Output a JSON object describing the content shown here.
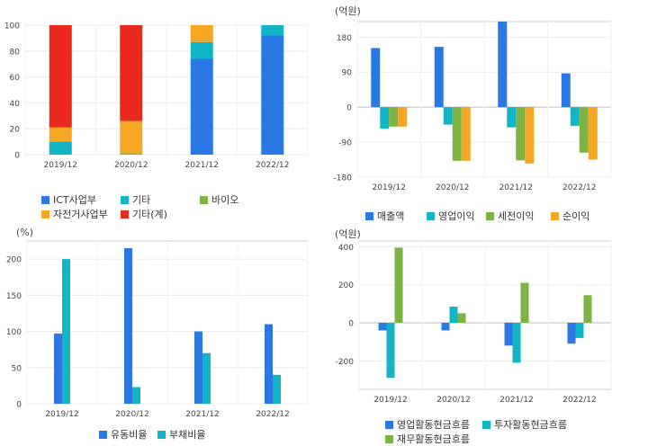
{
  "chart_data": [
    {
      "id": "c1",
      "type": "bar",
      "stacked": true,
      "categories": [
        "2019/12",
        "2020/12",
        "2021/12",
        "2022/12"
      ],
      "series": [
        {
          "name": "ICT사업부",
          "color": "#2b78e4",
          "values": [
            0,
            0,
            74,
            92
          ]
        },
        {
          "name": "기타",
          "color": "#12b5c5",
          "values": [
            10,
            0,
            13,
            8
          ]
        },
        {
          "name": "바이오",
          "color": "#7cb342",
          "values": [
            0,
            1,
            0,
            0
          ]
        },
        {
          "name": "자전거사업부",
          "color": "#f5a623",
          "values": [
            11,
            25,
            13,
            0
          ]
        },
        {
          "name": "기타(계)",
          "color": "#e8291c",
          "values": [
            79,
            74,
            0,
            0
          ]
        }
      ],
      "ylim": [
        0,
        100
      ],
      "yticks": [
        0,
        20,
        40,
        60,
        80,
        100
      ],
      "ytick_labels": [
        "0",
        "20",
        "40",
        "60",
        "80",
        "100"
      ],
      "unit": "",
      "legend": "bottom"
    },
    {
      "id": "c2",
      "type": "bar",
      "categories": [
        "2019/12",
        "2020/12",
        "2021/12",
        "2022/12"
      ],
      "series": [
        {
          "name": "매출액",
          "color": "#2b78e4",
          "values": [
            152,
            155,
            220,
            87
          ]
        },
        {
          "name": "영업이익",
          "color": "#12b5c5",
          "values": [
            -55,
            -45,
            -52,
            -48
          ]
        },
        {
          "name": "세전이익",
          "color": "#7cb342",
          "values": [
            -50,
            -138,
            -137,
            -117
          ]
        },
        {
          "name": "순이익",
          "color": "#f5a623",
          "values": [
            -50,
            -138,
            -145,
            -135
          ]
        }
      ],
      "ylim": [
        -180,
        220
      ],
      "yticks": [
        -180,
        -90,
        0,
        90,
        180
      ],
      "ytick_labels": [
        "-180",
        "-90",
        "0",
        "90",
        "180"
      ],
      "unit": "(억원)",
      "legend": "bottom"
    },
    {
      "id": "c3",
      "type": "bar",
      "categories": [
        "2019/12",
        "2020/12",
        "2021/12",
        "2022/12"
      ],
      "series": [
        {
          "name": "유동비율",
          "color": "#2b78e4",
          "values": [
            97,
            215,
            100,
            110
          ]
        },
        {
          "name": "부채비율",
          "color": "#12b5c5",
          "values": [
            200,
            23,
            70,
            40
          ]
        }
      ],
      "ylim": [
        0,
        225
      ],
      "yticks": [
        0,
        50,
        100,
        150,
        200
      ],
      "ytick_labels": [
        "0",
        "50",
        "100",
        "150",
        "200"
      ],
      "unit": "(%)",
      "legend": "bottom"
    },
    {
      "id": "c4",
      "type": "bar",
      "categories": [
        "2019/12",
        "2020/12",
        "2021/12",
        "2022/12"
      ],
      "series": [
        {
          "name": "영업활동현금흐름",
          "color": "#2b78e4",
          "values": [
            -40,
            -40,
            -120,
            -110
          ]
        },
        {
          "name": "투자활동현금흐름",
          "color": "#12b5c5",
          "values": [
            -290,
            85,
            -210,
            -80
          ]
        },
        {
          "name": "재무활동현금흐름",
          "color": "#7cb342",
          "values": [
            395,
            50,
            210,
            145
          ]
        }
      ],
      "ylim": [
        -350,
        430
      ],
      "yticks": [
        -200,
        0,
        200,
        400
      ],
      "ytick_labels": [
        "-200",
        "0",
        "200",
        "400"
      ],
      "unit": "(억원)",
      "legend": "bottom"
    }
  ]
}
